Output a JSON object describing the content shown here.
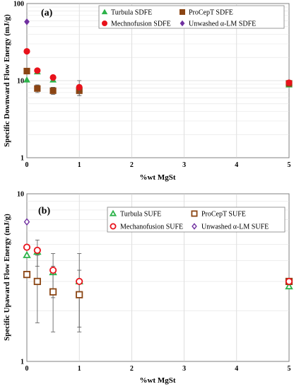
{
  "chart_data": [
    {
      "type": "scatter",
      "panel_label": "(a)",
      "title": "",
      "xlabel": "%wt MgSt",
      "ylabel": "Specific Downward Flow Energy (mJ/g)",
      "xlim": [
        0,
        5
      ],
      "ylim": [
        1,
        100
      ],
      "y_scale": "log",
      "x_ticks": [
        "0",
        "1",
        "2",
        "3",
        "4",
        "5"
      ],
      "y_ticks": [
        "1",
        "10",
        "100"
      ],
      "grid": true,
      "legend_position": "top-right",
      "series": [
        {
          "name": "Turbula SDFE",
          "marker": "triangle-filled",
          "color": "#2db34a",
          "x": [
            0,
            0.2,
            0.5,
            1,
            5
          ],
          "y": [
            10.2,
            13.0,
            10.2,
            7.8,
            8.8
          ],
          "err": [
            0,
            0,
            0,
            0,
            0
          ]
        },
        {
          "name": "ProCepT SDFE",
          "marker": "square-filled",
          "color": "#8b4513",
          "x": [
            0,
            0.2,
            0.5,
            1,
            5
          ],
          "y": [
            13.3,
            7.9,
            7.4,
            7.4,
            9.2
          ],
          "err": [
            0,
            0.9,
            0.8,
            1.0,
            0
          ]
        },
        {
          "name": "Mechnofusion SDFE",
          "marker": "circle-filled",
          "color": "#e8121b",
          "x": [
            0,
            0.2,
            0.5,
            1,
            5
          ],
          "y": [
            24.0,
            13.5,
            11.0,
            8.2,
            9.4
          ],
          "err": [
            0,
            0,
            0,
            1.8,
            0
          ]
        },
        {
          "name": "Unwashed α-LM SDFE",
          "marker": "diamond-filled",
          "color": "#7030a0",
          "x": [
            0
          ],
          "y": [
            58.0
          ],
          "err": [
            0
          ]
        }
      ]
    },
    {
      "type": "scatter",
      "panel_label": "(b)",
      "title": "",
      "xlabel": "%wt MgSt",
      "ylabel": "Specific Upaward Flow Energy (mJ/g)",
      "xlim": [
        0,
        5
      ],
      "ylim": [
        1,
        10
      ],
      "y_scale": "log",
      "x_ticks": [
        "0",
        "1",
        "2",
        "3",
        "4",
        "5"
      ],
      "y_ticks": [
        "1",
        "10"
      ],
      "grid": true,
      "legend_position": "top-right",
      "series": [
        {
          "name": "Turbula SUFE",
          "marker": "triangle-open",
          "color": "#2db34a",
          "x": [
            0,
            0.2,
            0.5,
            1,
            5
          ],
          "y": [
            4.3,
            4.5,
            3.4,
            3.0,
            2.8
          ],
          "err": [
            0,
            0.8,
            1.0,
            1.4,
            0
          ]
        },
        {
          "name": "ProCepT SUFE",
          "marker": "square-open",
          "color": "#8b4513",
          "x": [
            0,
            0.2,
            0.5,
            1,
            5
          ],
          "y": [
            3.3,
            3.0,
            2.6,
            2.5,
            3.0
          ],
          "err": [
            0,
            1.3,
            1.1,
            1.0,
            0
          ]
        },
        {
          "name": "Mechanofusion SUFE",
          "marker": "circle-open",
          "color": "#e8121b",
          "x": [
            0,
            0.2,
            0.5,
            1,
            5
          ],
          "y": [
            4.8,
            4.6,
            3.5,
            3.0,
            3.0
          ],
          "err": [
            0,
            0,
            0,
            0,
            0
          ]
        },
        {
          "name": "Unwashed α-LM SUFE",
          "marker": "diamond-open",
          "color": "#7030a0",
          "x": [
            0
          ],
          "y": [
            6.8
          ],
          "err": [
            0
          ]
        }
      ]
    }
  ]
}
